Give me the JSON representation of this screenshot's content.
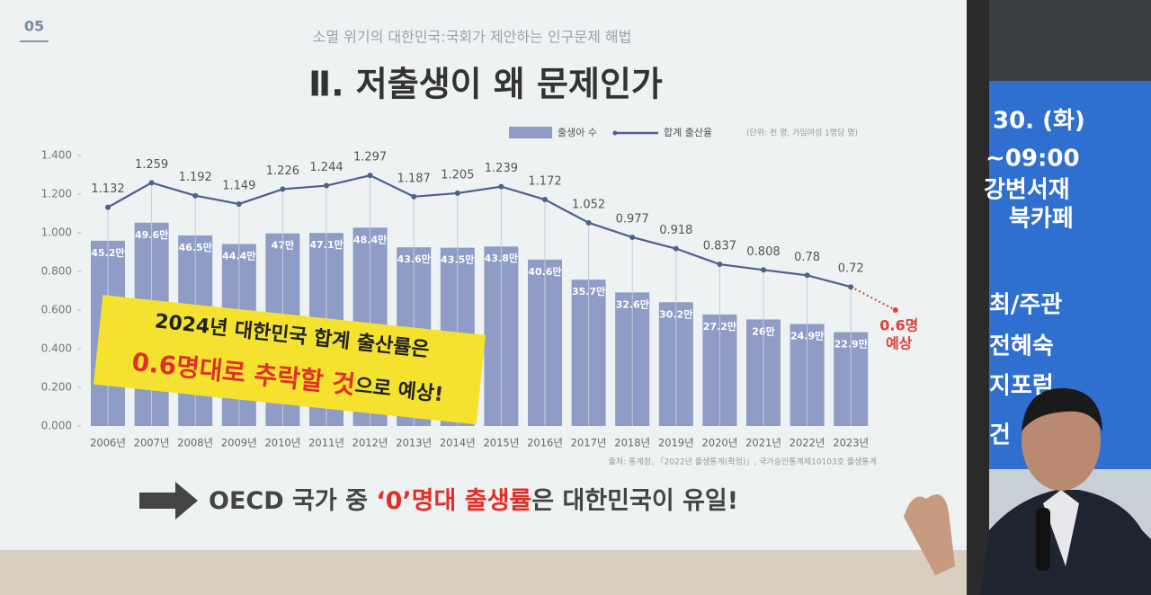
{
  "chart_data": {
    "type": "bar_line",
    "page_number": "05",
    "subtitle": "소멸 위기의 대한민국:국회가 제안하는 인구문제 해법",
    "title": "Ⅱ. 저출생이 왜 문제인가",
    "unit_note": "(단위: 천 명, 가임여성 1명당 명)",
    "categories": [
      "2006년",
      "2007년",
      "2008년",
      "2009년",
      "2010년",
      "2011년",
      "2012년",
      "2013년",
      "2014년",
      "2015년",
      "2016년",
      "2017년",
      "2018년",
      "2019년",
      "2020년",
      "2021년",
      "2022년",
      "2023년"
    ],
    "series": [
      {
        "name": "출생아 수",
        "color": "#8e9cc6",
        "axis": "y2",
        "values": [
          45.2,
          49.6,
          46.5,
          44.4,
          47,
          47.1,
          48.4,
          43.6,
          43.5,
          43.8,
          40.6,
          35.7,
          32.6,
          30.2,
          27.2,
          26,
          24.9,
          22.9
        ],
        "value_labels": [
          "45.2만",
          "49.6만",
          "46.5만",
          "44.4만",
          "47만",
          "47.1만",
          "48.4만",
          "43.6만",
          "43.5만",
          "43.8만",
          "40.6만",
          "35.7만",
          "32.6만",
          "30.2만",
          "27.2만",
          "26만",
          "24.9만",
          "22.9만"
        ]
      },
      {
        "name": "합계 출산율",
        "color": "#4f5f8f",
        "values": [
          1.132,
          1.259,
          1.192,
          1.149,
          1.226,
          1.244,
          1.297,
          1.187,
          1.205,
          1.239,
          1.172,
          1.052,
          0.977,
          0.918,
          0.837,
          0.808,
          0.78,
          0.72
        ]
      }
    ],
    "forecast": {
      "value": 0.6,
      "label": "0.6명",
      "label2": "예상",
      "color": "#e0403a"
    },
    "ylim": [
      0,
      1.4
    ],
    "yticks": [
      {
        "value": 0,
        "label": "0.000"
      },
      {
        "value": 0.2,
        "label": "0.200"
      },
      {
        "value": 0.4,
        "label": "0.400"
      },
      {
        "value": 0.6,
        "label": "0.600"
      },
      {
        "value": 0.8,
        "label": "0.800"
      },
      {
        "value": 1,
        "label": "1.000"
      },
      {
        "value": 1.2,
        "label": "1.200"
      },
      {
        "value": 1.4,
        "label": "1.400"
      }
    ],
    "y2lim": [
      0,
      66
    ],
    "callout": {
      "line1": "2024년 대한민국 합계 출산률은",
      "line2_red": "0.6명대로 추락할 것",
      "line2_black": "으로 예상!"
    },
    "source": "출처: 통계청, 「2022년 출생통계(확정)」, 국가승인통계제10103호 출생통계",
    "bottom_message": [
      "OECD 국가 중 ",
      "‘0’명대 출생률",
      "은 대한민국이 유일!"
    ]
  },
  "banner": {
    "lines": [
      "30. (화)",
      "~09:00",
      "강변서재",
      "북카페",
      "최/주관",
      "전혜숙",
      "지포럼",
      "건"
    ]
  }
}
